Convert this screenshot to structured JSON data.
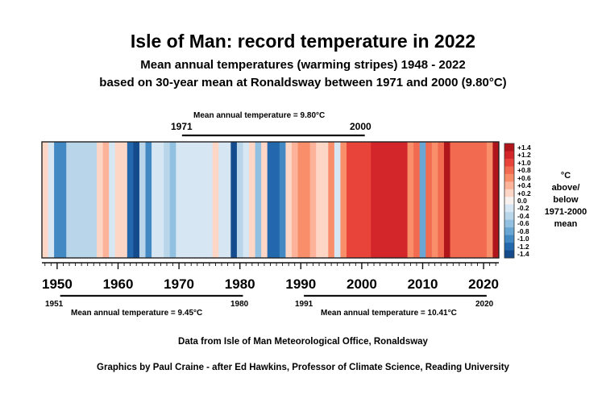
{
  "header": {
    "title": "Isle of Man: record temperature in 2022",
    "subtitle1": "Mean annual temperatures (warming stripes) 1948 - 2022",
    "subtitle2": "based on 30-year mean at Ronaldsway between 1971 and 2000 (9.80°C)"
  },
  "periods": [
    {
      "id": "p1971",
      "start_label": "1971",
      "end_label": "2000",
      "start": 1971,
      "end": 2000,
      "label": "Mean annual temperature = 9.80°C"
    },
    {
      "id": "p1951",
      "start_label": "1951",
      "end_label": "1980",
      "start": 1951,
      "end": 1980,
      "label": "Mean annual temperature = 9.45°C"
    },
    {
      "id": "p1991",
      "start_label": "1991",
      "end_label": "2020",
      "start": 1991,
      "end": 2020,
      "label": "Mean annual temperature = 10.41°C"
    }
  ],
  "legend": {
    "unit_lines": [
      "°C",
      "above/",
      "below",
      "1971-2000",
      "mean"
    ],
    "ticks": [
      "+1.4",
      "+1.2",
      "+1.0",
      "+0.8",
      "+0.6",
      "+0.4",
      "+0.2",
      "0.0",
      "-0.2",
      "-0.4",
      "-0.6",
      "-0.8",
      "-1.0",
      "-1.2",
      "-1.4"
    ],
    "colors": [
      "#b0151c",
      "#d3262a",
      "#e8443a",
      "#f26b50",
      "#f98e6b",
      "#fcb399",
      "#fdd6c6",
      "#f7f2ef",
      "#d6e6f3",
      "#b8d5ea",
      "#92c0e0",
      "#6aa6d3",
      "#4288c2",
      "#2367ad",
      "#144b8c"
    ]
  },
  "footer": {
    "credit1": "Data from Isle of Man Meteorological Office, Ronaldsway",
    "credit2": "Graphics by Paul Craine  - after Ed Hawkins, Professor of Climate Science, Reading University"
  },
  "chart_data": {
    "type": "heatmap",
    "title": "Isle of Man: record temperature in 2022",
    "x_range": [
      1948,
      2022
    ],
    "x_ticks": [
      1950,
      1960,
      1970,
      1980,
      1990,
      2000,
      2010,
      2020
    ],
    "value_range": [
      -1.4,
      1.4
    ],
    "baseline": "1971-2000 mean (9.80°C)",
    "years": [
      1948,
      1949,
      1950,
      1951,
      1952,
      1953,
      1954,
      1955,
      1956,
      1957,
      1958,
      1959,
      1960,
      1961,
      1962,
      1963,
      1964,
      1965,
      1966,
      1967,
      1968,
      1969,
      1970,
      1971,
      1972,
      1973,
      1974,
      1975,
      1976,
      1977,
      1978,
      1979,
      1980,
      1981,
      1982,
      1983,
      1984,
      1985,
      1986,
      1987,
      1988,
      1989,
      1990,
      1991,
      1992,
      1993,
      1994,
      1995,
      1996,
      1997,
      1998,
      1999,
      2000,
      2001,
      2002,
      2003,
      2004,
      2005,
      2006,
      2007,
      2008,
      2009,
      2010,
      2011,
      2012,
      2013,
      2014,
      2015,
      2016,
      2017,
      2018,
      2019,
      2020,
      2021,
      2022
    ],
    "anomalies": [
      0.3,
      -0.2,
      -1.0,
      -1.0,
      -0.4,
      -0.4,
      -0.4,
      -0.4,
      -0.4,
      0.1,
      0.5,
      -0.2,
      0.2,
      0.2,
      -1.1,
      -1.3,
      -0.4,
      -1.0,
      -0.2,
      -0.2,
      -0.4,
      -0.6,
      -0.2,
      -0.2,
      -0.2,
      -0.2,
      -0.2,
      -0.2,
      0.2,
      -0.2,
      -0.2,
      -1.3,
      -0.4,
      -0.2,
      0.1,
      -0.6,
      0.2,
      -1.2,
      -1.2,
      -1.0,
      0.2,
      0.5,
      0.7,
      0.7,
      0.5,
      0.3,
      0.2,
      0.7,
      -0.2,
      0.7,
      1.0,
      1.0,
      1.0,
      1.0,
      1.1,
      1.1,
      1.1,
      1.1,
      1.1,
      1.1,
      0.6,
      0.8,
      -0.8,
      0.8,
      0.6,
      0.8,
      1.3,
      0.8,
      0.8,
      0.8,
      0.8,
      0.8,
      0.8,
      0.6,
      1.3
    ]
  }
}
